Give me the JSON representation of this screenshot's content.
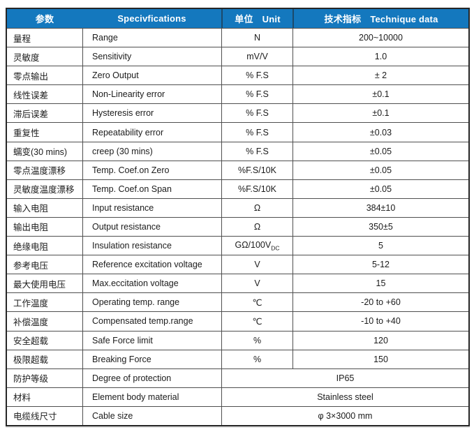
{
  "table": {
    "header": {
      "param_cn": "参数",
      "spec_en": "Specivfications",
      "unit_cn": "单位",
      "unit_en": "Unit",
      "data_cn": "技术指标",
      "data_en": "Technique data"
    },
    "colors": {
      "header_bg": "#1478be",
      "header_text": "#ffffff",
      "header_divider": "#1c4a6b",
      "border_outer": "#262626",
      "border_inner": "#4f4f4f",
      "text": "#1b1b1b",
      "page_bg": "#ffffff"
    },
    "rows": [
      {
        "cn": "量程",
        "en": "Range",
        "unit": "N",
        "value": "200~10000"
      },
      {
        "cn": "灵敏度",
        "en": "Sensitivity",
        "unit": "mV/V",
        "value": "1.0"
      },
      {
        "cn": "零点输出",
        "en": "Zero Output",
        "unit": "% F.S",
        "value": "± 2"
      },
      {
        "cn": "线性误差",
        "en": "Non-Linearity error",
        "unit": "% F.S",
        "value": "±0.1"
      },
      {
        "cn": "滞后误差",
        "en": "Hysteresis error",
        "unit": "% F.S",
        "value": "±0.1"
      },
      {
        "cn": "重复性",
        "en": "Repeatability error",
        "unit": "% F.S",
        "value": "±0.03"
      },
      {
        "cn": "蠕变(30 mins)",
        "en": "creep (30 mins)",
        "unit": "% F.S",
        "value": "±0.05"
      },
      {
        "cn": "零点温度漂移",
        "en": "Temp. Coef.on Zero",
        "unit": "%F.S/10K",
        "value": "±0.05"
      },
      {
        "cn": "灵敏度温度漂移",
        "en": "Temp. Coef.on Span",
        "unit": "%F.S/10K",
        "value": "±0.05"
      },
      {
        "cn": "输入电阻",
        "en": "Input resistance",
        "unit": "Ω",
        "value": "384±10"
      },
      {
        "cn": "输出电阻",
        "en": "Output resistance",
        "unit": "Ω",
        "value": "350±5"
      },
      {
        "cn": "绝缘电阻",
        "en": "Insulation resistance",
        "unit": "GΩ/100V",
        "unit_sub": "DC",
        "value": "5"
      },
      {
        "cn": "参考电压",
        "en": "Reference excitation voltage",
        "unit": "V",
        "value": "5-12"
      },
      {
        "cn": "最大使用电压",
        "en": "Max.eccitation voltage",
        "unit": "V",
        "value": "15"
      },
      {
        "cn": "工作温度",
        "en": "Operating temp. range",
        "unit": "℃",
        "value": "-20 to +60"
      },
      {
        "cn": "补偿温度",
        "en": "Compensated temp.range",
        "unit": "℃",
        "value": "-10 to +40"
      },
      {
        "cn": "安全超载",
        "en": "Safe Force limit",
        "unit": "%",
        "value": "120"
      },
      {
        "cn": "极限超载",
        "en": "Breaking Force",
        "unit": "%",
        "value": "150"
      },
      {
        "cn": "防护等级",
        "en": "Degree of protection",
        "merged": true,
        "value": "IP65"
      },
      {
        "cn": "材料",
        "en": "Element body material",
        "merged": true,
        "value": "Stainless steel"
      },
      {
        "cn": "电缆线尺寸",
        "en": "Cable size",
        "merged": true,
        "value": "φ 3×3000 mm"
      }
    ]
  }
}
